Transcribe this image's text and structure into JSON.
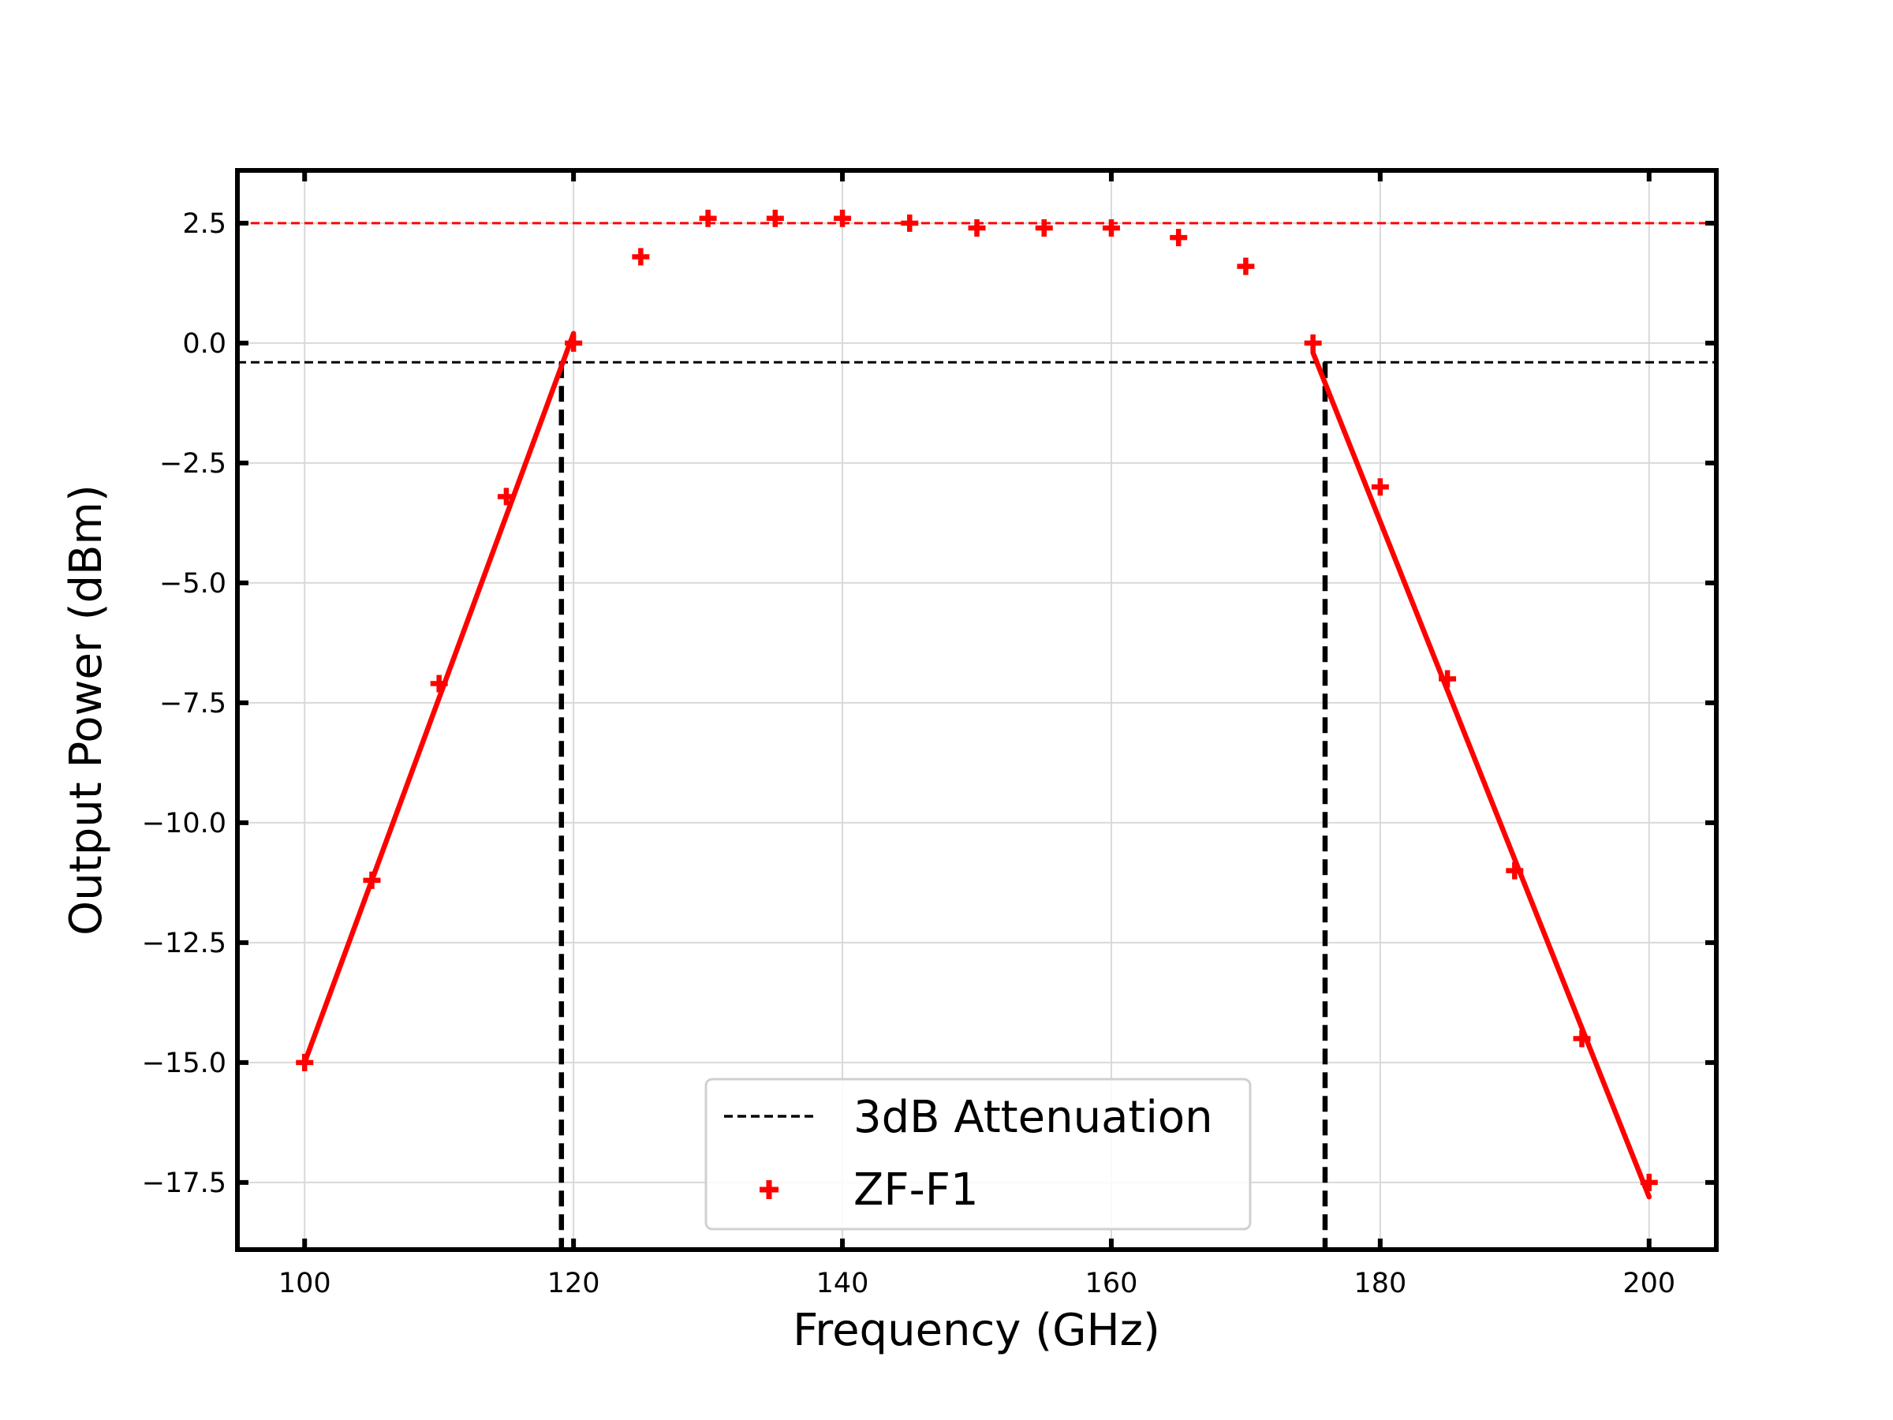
{
  "chart_data": {
    "type": "scatter",
    "title": "",
    "xlabel": "Frequency (GHz)",
    "ylabel": "Output Power (dBm)",
    "xlim": [
      95,
      205
    ],
    "ylim": [
      -18.9,
      3.6
    ],
    "xticks": [
      100,
      120,
      140,
      160,
      180,
      200
    ],
    "xtick_labels": [
      "100",
      "120",
      "140",
      "160",
      "180",
      "200"
    ],
    "yticks": [
      2.5,
      0.0,
      -2.5,
      -5.0,
      -7.5,
      -10.0,
      -12.5,
      -15.0,
      -17.5
    ],
    "ytick_labels": [
      "2.5",
      "0.0",
      "−2.5",
      "−5.0",
      "−7.5",
      "−10.0",
      "−12.5",
      "−15.0",
      "−17.5"
    ],
    "grid": true,
    "legend_position": "lower-center",
    "series": [
      {
        "name": "ZF-F1",
        "kind": "scatter",
        "marker": "plus",
        "color": "#ff0000",
        "points": [
          {
            "x": 100,
            "y": -15.0
          },
          {
            "x": 105,
            "y": -11.2
          },
          {
            "x": 110,
            "y": -7.1
          },
          {
            "x": 115,
            "y": -3.2
          },
          {
            "x": 120,
            "y": 0.0
          },
          {
            "x": 125,
            "y": 1.8
          },
          {
            "x": 130,
            "y": 2.6
          },
          {
            "x": 135,
            "y": 2.6
          },
          {
            "x": 140,
            "y": 2.6
          },
          {
            "x": 145,
            "y": 2.5
          },
          {
            "x": 150,
            "y": 2.4
          },
          {
            "x": 155,
            "y": 2.4
          },
          {
            "x": 160,
            "y": 2.4
          },
          {
            "x": 165,
            "y": 2.2
          },
          {
            "x": 170,
            "y": 1.6
          },
          {
            "x": 175,
            "y": 0.0
          },
          {
            "x": 180,
            "y": -3.0
          },
          {
            "x": 185,
            "y": -7.0
          },
          {
            "x": 190,
            "y": -11.0
          },
          {
            "x": 195,
            "y": -14.5
          },
          {
            "x": 200,
            "y": -17.5
          }
        ]
      },
      {
        "name": "3dB Attenuation",
        "kind": "reference-lines",
        "color": "#000000",
        "horizontal_y": -0.4,
        "vertical_x": [
          119.1,
          175.9
        ]
      },
      {
        "kind": "reference-line",
        "color": "#ff0000",
        "horizontal_y": 2.5
      },
      {
        "kind": "fit-lines",
        "color": "#ff0000",
        "segments": [
          {
            "x": [
              100,
              120
            ],
            "y": [
              -15.0,
              0.2
            ]
          },
          {
            "x": [
              175,
              200
            ],
            "y": [
              -0.2,
              -17.8
            ]
          }
        ]
      }
    ],
    "legend": [
      {
        "label": "3dB Attenuation",
        "style": "dashed-line",
        "color": "#000000"
      },
      {
        "label": "ZF-F1",
        "style": "plus-marker",
        "color": "#ff0000"
      }
    ]
  }
}
